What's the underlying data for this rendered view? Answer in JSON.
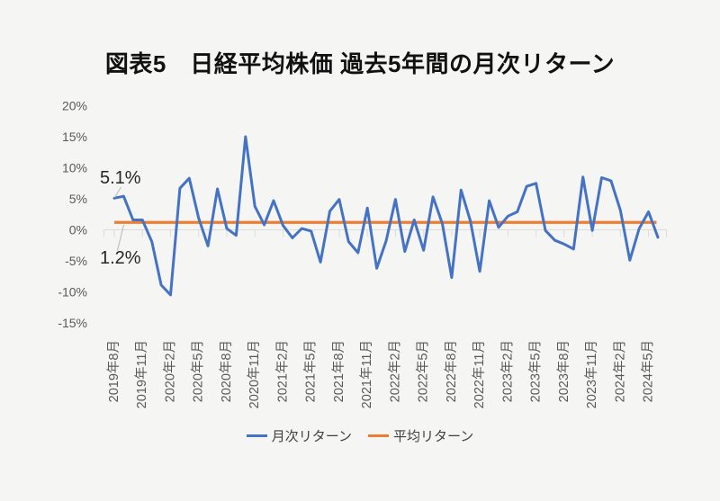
{
  "figure": {
    "title": "図表5　日経平均株価 過去5年間の月次リターン"
  },
  "chart_data": {
    "type": "line",
    "title": "図表5　日経平均株価 過去5年間の月次リターン",
    "x_axis": {
      "visible_tick_labels": [
        "2019年8月",
        "2019年11月",
        "2020年2月",
        "2020年5月",
        "2020年8月",
        "2020年11月",
        "2021年2月",
        "2021年5月",
        "2021年8月",
        "2021年11月",
        "2022年2月",
        "2022年5月",
        "2022年8月",
        "2022年11月",
        "2023年2月",
        "2023年5月",
        "2023年8月",
        "2023年11月",
        "2024年2月",
        "2024年5月"
      ],
      "points_per_visible_tick": 3
    },
    "y_axis": {
      "tick_labels": [
        "20%",
        "15%",
        "10%",
        "5%",
        "0%",
        "-5%",
        "-10%",
        "-15%"
      ],
      "tick_values": [
        20,
        15,
        10,
        5,
        0,
        -5,
        -10,
        -15
      ],
      "range": [
        -15,
        20
      ],
      "unit": "%"
    },
    "series": [
      {
        "name": "月次リターン",
        "type": "line",
        "color": "#4472C4",
        "values": [
          5.1,
          5.4,
          1.6,
          1.6,
          -1.9,
          -8.9,
          -10.5,
          6.7,
          8.3,
          1.9,
          -2.6,
          6.6,
          0.2,
          -0.9,
          15.0,
          3.8,
          0.8,
          4.7,
          0.7,
          -1.3,
          0.2,
          -0.2,
          -5.2,
          3.0,
          4.9,
          -1.9,
          -3.7,
          3.5,
          -6.2,
          -1.8,
          4.9,
          -3.5,
          1.6,
          -3.3,
          5.3,
          1.0,
          -7.7,
          6.4,
          1.4,
          -6.7,
          4.7,
          0.4,
          2.2,
          2.9,
          7.0,
          7.5,
          -0.1,
          -1.7,
          -2.3,
          -3.1,
          8.5,
          -0.1,
          8.4,
          7.9,
          3.1,
          -4.9,
          0.2,
          2.9,
          -1.2
        ]
      },
      {
        "name": "平均リターン",
        "type": "constant-line",
        "color": "#ED7D31",
        "value": 1.2
      }
    ],
    "annotations": [
      {
        "text": "5.1%",
        "refers_to": "first-monthly-return-point"
      },
      {
        "text": "1.2%",
        "refers_to": "average-return-line"
      }
    ],
    "legend_position": "bottom",
    "grid": "x-axis-zero-line-only"
  },
  "legend": {
    "items": [
      {
        "label": "月次リターン",
        "color": "#4472C4"
      },
      {
        "label": "平均リターン",
        "color": "#ED7D31"
      }
    ]
  },
  "colors": {
    "background": "#f5f5f3",
    "axis_line": "#dcdcda",
    "tick_text": "#595959",
    "title_text": "#111111",
    "annotation_text": "#262626",
    "leader_line": "#b7b7b7",
    "legend_text": "#404040"
  }
}
